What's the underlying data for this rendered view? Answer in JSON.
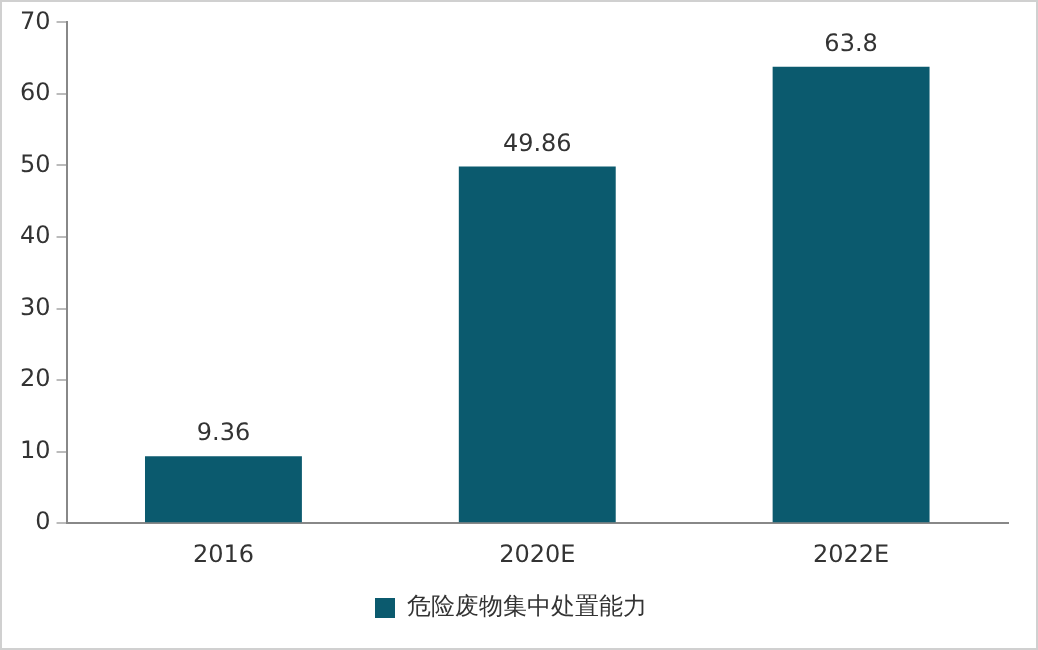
{
  "chart_data": {
    "type": "bar",
    "categories": [
      "2016",
      "2020E",
      "2022E"
    ],
    "series": [
      {
        "name": "危险废物集中处置能力",
        "color": "#0b5a6e",
        "values": [
          9.36,
          49.86,
          63.8
        ]
      }
    ],
    "ylim": [
      0,
      70
    ],
    "yticks": [
      0,
      10,
      20,
      30,
      40,
      50,
      60,
      70
    ],
    "grid": false,
    "legend": "bottom",
    "data_labels": true
  }
}
